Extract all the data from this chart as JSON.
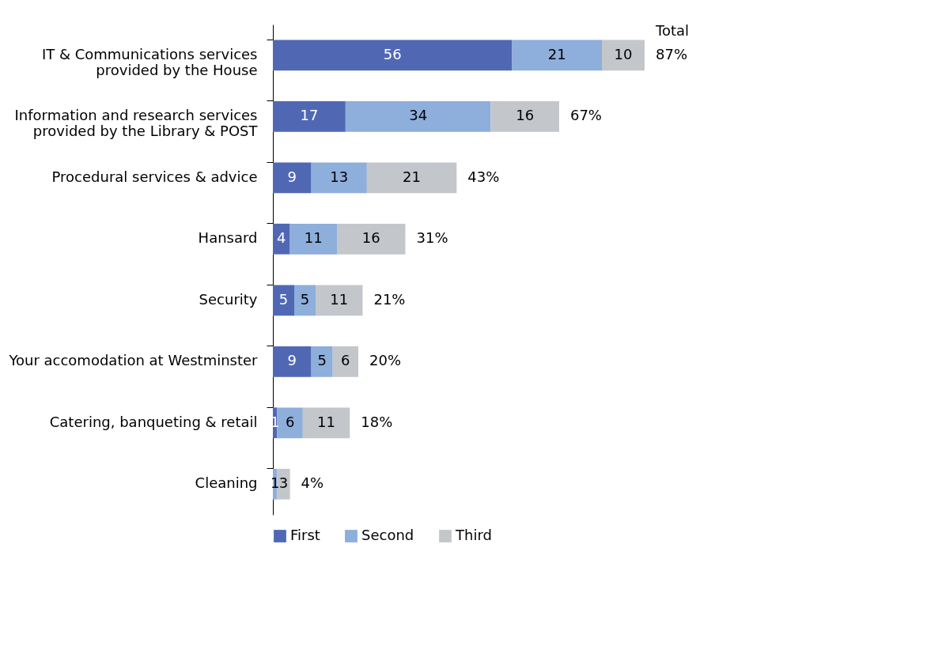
{
  "chart_data": {
    "type": "bar",
    "orientation": "horizontal",
    "stacked": true,
    "categories": [
      "IT & Communications services\nprovided by the House",
      "Information and research services\nprovided by the Library & POST",
      "Procedural services & advice",
      "Hansard",
      "Security",
      "Your accomodation at Westminster",
      "Catering, banqueting & retail",
      "Cleaning"
    ],
    "series": [
      {
        "name": "First",
        "color": "#5068b4",
        "values": [
          56,
          17,
          9,
          4,
          5,
          9,
          1,
          0
        ],
        "value_labels": [
          "56",
          "17",
          "9",
          "4",
          "5",
          "9",
          "1",
          null
        ]
      },
      {
        "name": "Second",
        "color": "#8eaedb",
        "values": [
          21,
          34,
          13,
          11,
          5,
          5,
          6,
          1
        ],
        "value_labels": [
          "21",
          "34",
          "13",
          "11",
          "5",
          "5",
          "6",
          "1"
        ]
      },
      {
        "name": "Third",
        "color": "#c3c6ca",
        "values": [
          10,
          16,
          21,
          16,
          11,
          6,
          11,
          3
        ],
        "value_labels": [
          "10",
          "16",
          "21",
          "16",
          "11",
          "6",
          "11",
          "3"
        ]
      }
    ],
    "totals": [
      "87%",
      "67%",
      "43%",
      "31%",
      "21%",
      "20%",
      "18%",
      "4%"
    ],
    "annotations": [
      "Total"
    ],
    "legend": "bottom",
    "tick_labels": "y"
  }
}
